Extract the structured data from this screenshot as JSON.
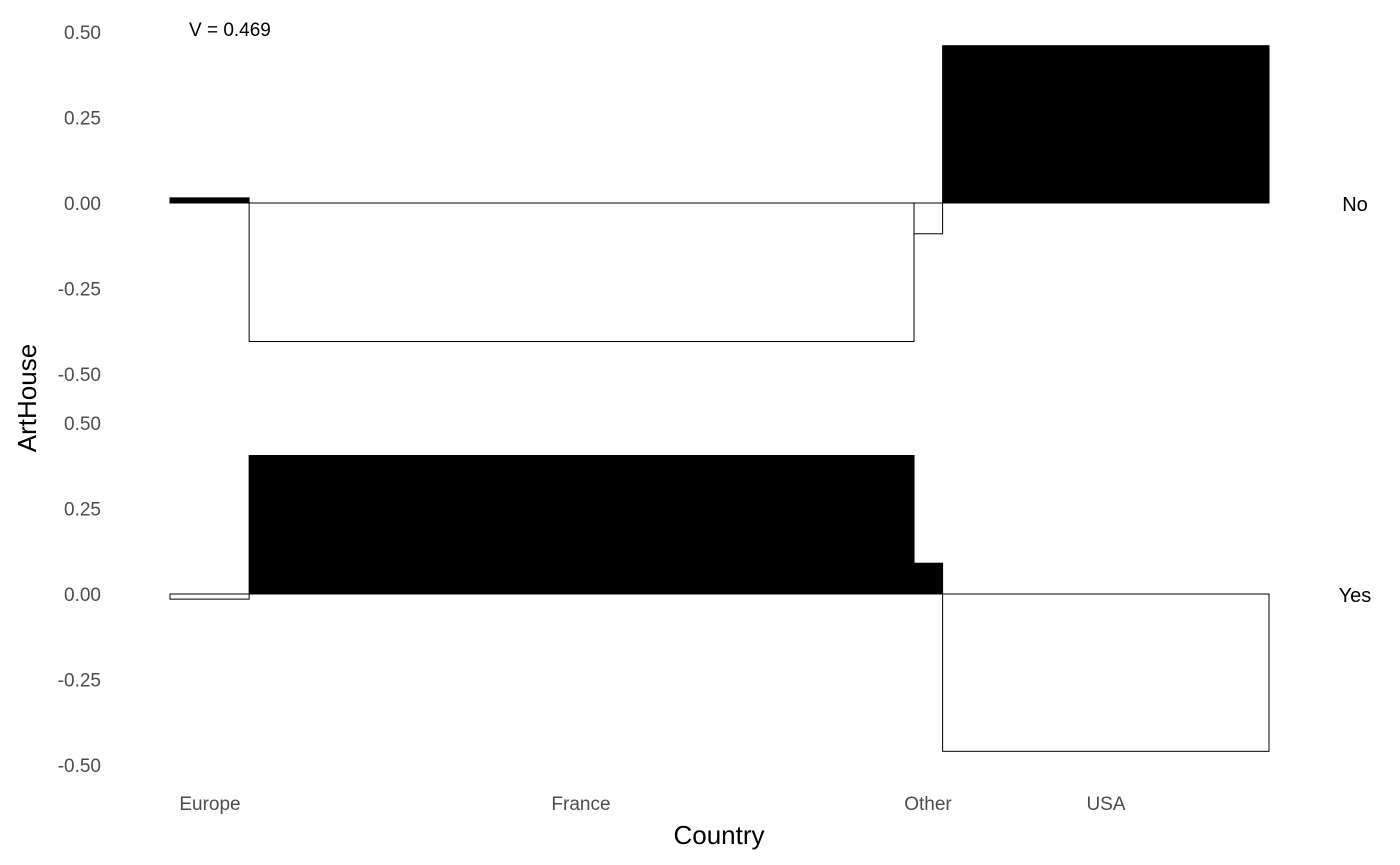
{
  "chart_data": {
    "type": "bar",
    "annotation": "V = 0.469",
    "xlabel": "Country",
    "ylabel": "ArtHouse",
    "categories": [
      "Europe",
      "France",
      "Other",
      "USA"
    ],
    "category_proportions": [
      0.072,
      0.605,
      0.026,
      0.297
    ],
    "ylim": [
      -0.5,
      0.5
    ],
    "yticks": [
      "0.50",
      "0.25",
      "0.00",
      "-0.25",
      "-0.50"
    ],
    "grid": false,
    "colors": {
      "positive": "#000000",
      "negative": "#ffffff",
      "outline": "#000000"
    },
    "panels": [
      {
        "name": "No",
        "values": [
          0.015,
          -0.405,
          -0.09,
          0.46
        ]
      },
      {
        "name": "Yes",
        "values": [
          -0.015,
          0.405,
          0.09,
          -0.46
        ]
      }
    ]
  }
}
